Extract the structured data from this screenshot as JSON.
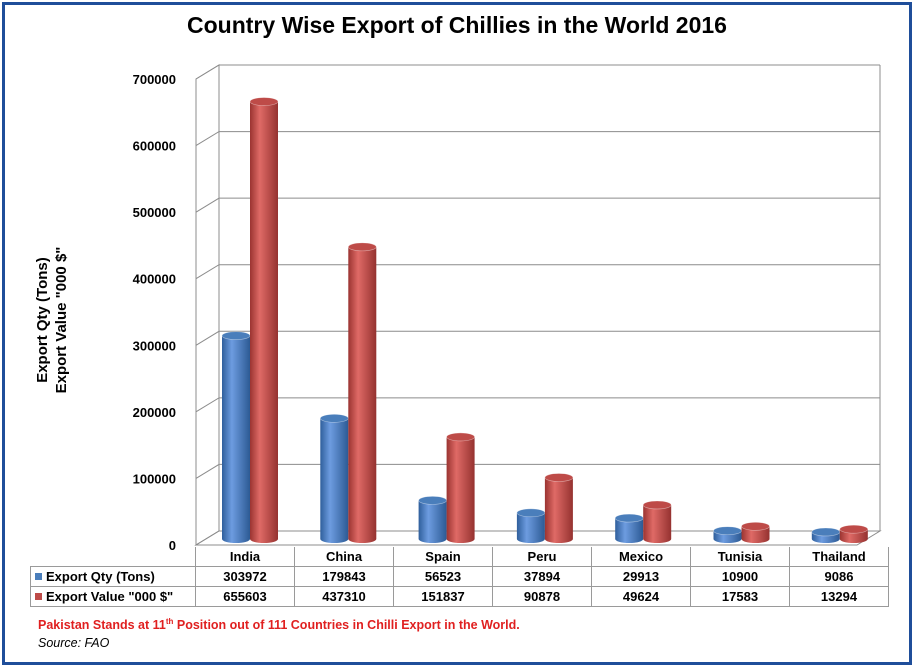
{
  "title": "Country Wise Export of Chillies in the World 2016",
  "ylabel_line1": "Export Qty (Tons)",
  "ylabel_line2": "Export Value \"000 $\"",
  "note": {
    "pre": "Pakistan Stands at 11",
    "sup": "th",
    "post": " Position out of 111 Countries in Chilli Export in the World."
  },
  "source": "Source: FAO",
  "colors": {
    "qty": "#4a7ebb",
    "value": "#be4b48",
    "frame": "#1f4e9a",
    "note": "#e02020"
  },
  "chart_data": {
    "type": "bar",
    "title": "Country Wise Export of Chillies in the World 2016",
    "ylabel": "Export Qty (Tons) / Export Value \"000 $\"",
    "xlabel": "",
    "categories": [
      "India",
      "China",
      "Spain",
      "Peru",
      "Mexico",
      "Tunisia",
      "Thailand"
    ],
    "series": [
      {
        "name": "Export Qty (Tons)",
        "values": [
          303972,
          179843,
          56523,
          37894,
          29913,
          10900,
          9086
        ]
      },
      {
        "name": "Export Value \"000 $\"",
        "values": [
          655603,
          437310,
          151837,
          90878,
          49624,
          17583,
          13294
        ]
      }
    ],
    "ylim": [
      0,
      700000
    ],
    "yticks": [
      "0",
      "100000",
      "200000",
      "300000",
      "400000",
      "500000",
      "600000",
      "700000"
    ],
    "grid": true,
    "style": "3d-cylinder",
    "legend": "data-table"
  }
}
